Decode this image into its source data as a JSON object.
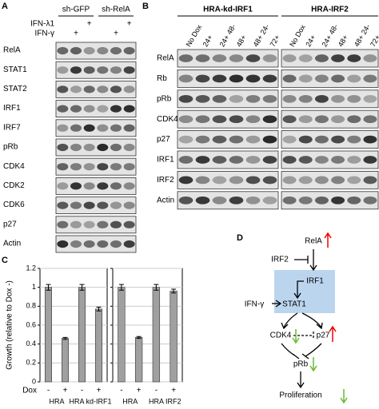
{
  "panel_a": {
    "letter": "A",
    "groups": [
      "sh-GFP",
      "sh-RelA"
    ],
    "treatments": [
      {
        "label": "IFN-λ1",
        "signs": [
          null,
          null,
          "+",
          null,
          null,
          "+"
        ]
      },
      {
        "label": "IFN-γ",
        "signs": [
          null,
          "+",
          null,
          null,
          "+",
          null
        ]
      }
    ],
    "rows": [
      "RelA",
      "STAT1",
      "STAT2",
      "IRF1",
      "IRF7",
      "pRb",
      "CDK4",
      "CDK2",
      "CDK6",
      "p27",
      "Actin"
    ]
  },
  "panel_b": {
    "letter": "B",
    "groups": [
      "HRA-kd-IRF1",
      "HRA-IRF2"
    ],
    "lanes": [
      "No Dox",
      "24+",
      "24+ 48-",
      "48+",
      "48+ 24-",
      "72+"
    ],
    "rows": [
      "RelA",
      "Rb",
      "pRb",
      "CDK4",
      "p27",
      "IRF1",
      "IRF2",
      "Actin"
    ]
  },
  "panel_c": {
    "letter": "C",
    "dox_label": "Dox"
  },
  "chart_data": [
    {
      "type": "bar",
      "ylabel": "Growth (relative to Dox -)",
      "groups": [
        "HRA",
        "HRA kd-IRF1"
      ],
      "categories": [
        "-",
        "+",
        "-",
        "+"
      ],
      "values": [
        1.0,
        0.46,
        1.0,
        0.77
      ],
      "errors": [
        0.03,
        0.01,
        0.03,
        0.02
      ],
      "color": "#a0a0a0",
      "ylim": [
        0,
        1.2
      ],
      "yticks": [
        0,
        0.2,
        0.4,
        0.6,
        0.8,
        1,
        1.2
      ],
      "grid": true
    },
    {
      "type": "bar",
      "groups": [
        "HRA",
        "HRA IRF2"
      ],
      "categories": [
        "-",
        "+",
        "-",
        "+"
      ],
      "values": [
        1.0,
        0.47,
        1.0,
        0.96
      ],
      "errors": [
        0.03,
        0.01,
        0.03,
        0.02
      ],
      "color": "#a0a0a0",
      "ylim": [
        0,
        1.2
      ],
      "yticks": [
        0,
        0.2,
        0.4,
        0.6,
        0.8,
        1,
        1.2
      ],
      "grid": true
    }
  ],
  "panel_d": {
    "letter": "D",
    "nodes": [
      "RelA",
      "IRF2",
      "IRF1",
      "STAT1",
      "IFN-γ",
      "CDK4",
      "p27",
      "pRb",
      "Proliferation"
    ]
  }
}
